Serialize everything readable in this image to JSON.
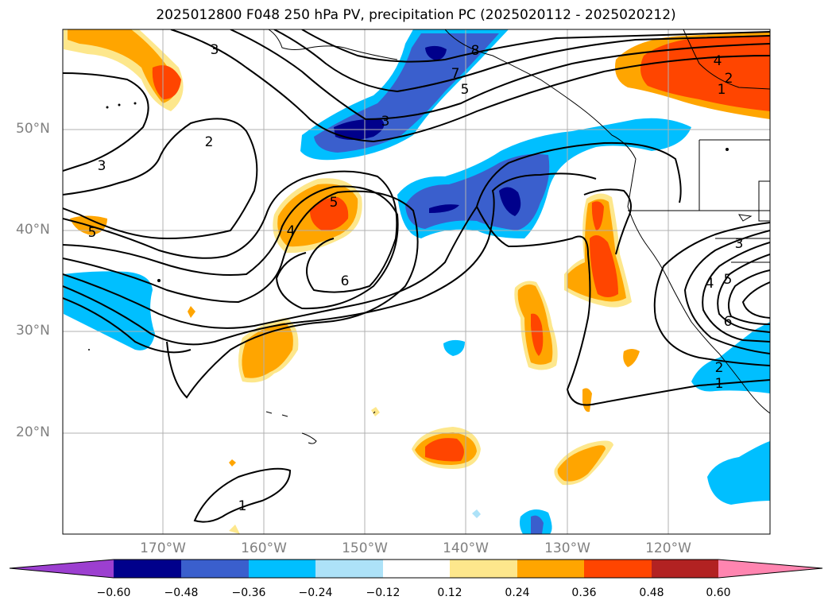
{
  "title": "2025012800 F048 250 hPa PV, precipitation PC (2025020112 - 2025020212)",
  "lat_labels": [
    "50°N",
    "40°N",
    "30°N",
    "20°N"
  ],
  "lon_labels": [
    "170°W",
    "160°W",
    "150°W",
    "140°W",
    "130°W",
    "120°W"
  ],
  "contour_labels": [
    "3",
    "8",
    "7",
    "5",
    "3",
    "4",
    "2",
    "1",
    "2",
    "3",
    "5",
    "4",
    "5",
    "6",
    "3",
    "5",
    "4",
    "6",
    "2",
    "1",
    "1"
  ],
  "colorbar": {
    "ticks": [
      "−0.60",
      "−0.48",
      "−0.36",
      "−0.24",
      "−0.12",
      "0.12",
      "0.24",
      "0.36",
      "0.48",
      "0.60"
    ],
    "colors": [
      "#9c3fd0",
      "#00008b",
      "#3a5fcd",
      "#00bfff",
      "#ade2f8",
      "#ffffff",
      "#fde78c",
      "#ffa500",
      "#ff4500",
      "#b22222",
      "#ff85b0"
    ]
  }
}
